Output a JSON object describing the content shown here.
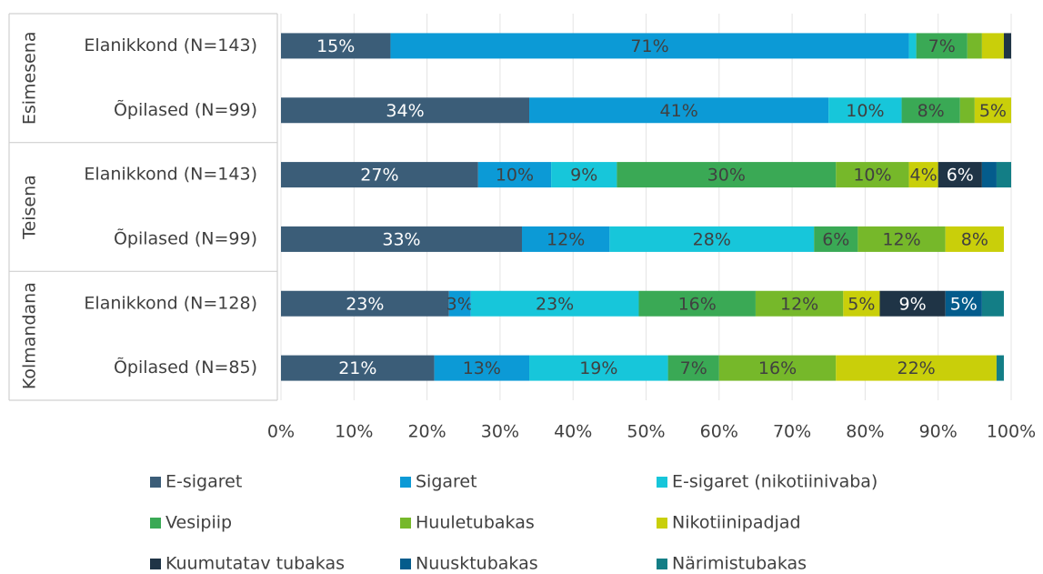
{
  "chart_data": {
    "type": "stacked_barh_100",
    "groups": [
      {
        "label": "Esimesena",
        "categories": [
          "Elanikkond (N=143)",
          "Õpilased (N=99)"
        ]
      },
      {
        "label": "Teisena",
        "categories": [
          "Elanikkond (N=143)",
          "Õpilased (N=99)"
        ]
      },
      {
        "label": "Kolmandana",
        "categories": [
          "Elanikkond (N=128)",
          "Õpilased (N=85)"
        ]
      }
    ],
    "series": [
      {
        "name": "E-sigaret",
        "color": "#3b5d78",
        "values": [
          15,
          34,
          27,
          33,
          23,
          21
        ],
        "value_labels": [
          "15%",
          "34%",
          "27%",
          "33%",
          "23%",
          "21%"
        ]
      },
      {
        "name": "Sigaret",
        "color": "#0c9ad6",
        "values": [
          71,
          41,
          10,
          12,
          3,
          13
        ],
        "value_labels": [
          "71%",
          "41%",
          "10%",
          "12%",
          "3%",
          "13%"
        ]
      },
      {
        "name": "E-sigaret (nikotiinivaba)",
        "color": "#17c6da",
        "values": [
          1,
          10,
          9,
          28,
          23,
          19
        ],
        "value_labels": [
          null,
          "10%",
          "9%",
          "28%",
          "23%",
          "19%"
        ]
      },
      {
        "name": "Vesipiip",
        "color": "#3aa955",
        "values": [
          7,
          8,
          30,
          6,
          16,
          7
        ],
        "value_labels": [
          "7%",
          "8%",
          "30%",
          "6%",
          "16%",
          "7%"
        ]
      },
      {
        "name": "Huuletubakas",
        "color": "#76b82a",
        "values": [
          2,
          2,
          10,
          12,
          12,
          16
        ],
        "value_labels": [
          null,
          null,
          "10%",
          "12%",
          "12%",
          "16%"
        ]
      },
      {
        "name": "Nikotiinipadjad",
        "color": "#c9cf0a",
        "values": [
          3,
          5,
          4,
          8,
          5,
          22
        ],
        "value_labels": [
          null,
          "5%",
          "4%",
          "8%",
          "5%",
          "22%"
        ]
      },
      {
        "name": "Kuumutatav tubakas",
        "color": "#1f3446",
        "values": [
          1,
          0,
          6,
          0,
          9,
          0
        ],
        "value_labels": [
          null,
          null,
          "6%",
          null,
          "9%",
          null
        ]
      },
      {
        "name": "Nuusktubakas",
        "color": "#045c8c",
        "values": [
          0,
          0,
          2,
          0,
          5,
          0
        ],
        "value_labels": [
          null,
          null,
          null,
          null,
          "5%",
          null
        ]
      },
      {
        "name": "Närimistubakas",
        "color": "#137e86",
        "values": [
          0,
          0,
          2,
          0,
          3,
          1
        ],
        "value_labels": [
          null,
          null,
          null,
          null,
          null,
          null
        ]
      }
    ],
    "xlim": [
      0,
      100
    ],
    "xticks": [
      {
        "value": 0,
        "label": "0%"
      },
      {
        "value": 10,
        "label": "10%"
      },
      {
        "value": 20,
        "label": "20%"
      },
      {
        "value": 30,
        "label": "30%"
      },
      {
        "value": 40,
        "label": "40%"
      },
      {
        "value": 50,
        "label": "50%"
      },
      {
        "value": 60,
        "label": "60%"
      },
      {
        "value": 70,
        "label": "70%"
      },
      {
        "value": 80,
        "label": "80%"
      },
      {
        "value": 90,
        "label": "90%"
      },
      {
        "value": 100,
        "label": "100%"
      }
    ],
    "grid": true,
    "legend": "bottom"
  }
}
